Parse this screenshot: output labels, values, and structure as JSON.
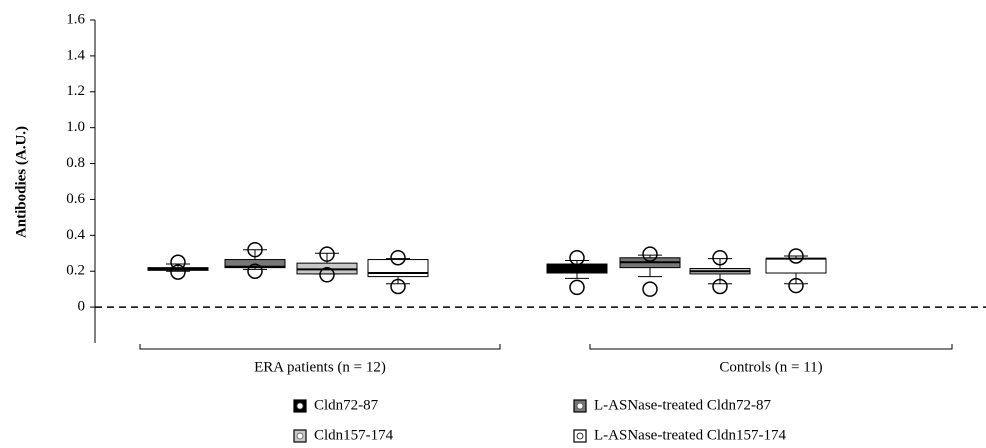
{
  "chart_data": {
    "type": "box",
    "ylabel": "Antibodies (A.U.)",
    "ylim": [
      -0.2,
      1.6
    ],
    "yticks": [
      0,
      0.2,
      0.4,
      0.6,
      0.8,
      {
        "value": 1,
        "label": "1.0"
      },
      1.2,
      1.4,
      1.6
    ],
    "reference_line": 0,
    "categories": [
      "ERA patients (n = 12)",
      "Controls (n = 11)"
    ],
    "series": [
      {
        "name": "Cldn72-87",
        "color": "#000000",
        "boxes": [
          {
            "min": 0.2,
            "q1": 0.205,
            "median": 0.21,
            "q3": 0.22,
            "max": 0.24,
            "outliers": [
              0.25,
              0.195
            ]
          },
          {
            "min": 0.16,
            "q1": 0.19,
            "median": 0.22,
            "q3": 0.24,
            "max": 0.26,
            "outliers": [
              0.275,
              0.11
            ]
          }
        ]
      },
      {
        "name": "L-ASNase-treated Cldn72-87",
        "color": "#777777",
        "boxes": [
          {
            "min": 0.21,
            "q1": 0.22,
            "median": 0.225,
            "q3": 0.265,
            "max": 0.32,
            "outliers": [
              0.32,
              0.2
            ]
          },
          {
            "min": 0.17,
            "q1": 0.22,
            "median": 0.25,
            "q3": 0.275,
            "max": 0.29,
            "outliers": [
              0.295,
              0.1
            ]
          }
        ]
      },
      {
        "name": "Cldn157-174",
        "color": "#c8c8c8",
        "boxes": [
          {
            "min": 0.185,
            "q1": 0.185,
            "median": 0.21,
            "q3": 0.245,
            "max": 0.3,
            "outliers": [
              0.295,
              0.18
            ]
          },
          {
            "min": 0.13,
            "q1": 0.185,
            "median": 0.2,
            "q3": 0.215,
            "max": 0.27,
            "outliers": [
              0.275,
              0.115
            ]
          }
        ]
      },
      {
        "name": "L-ASNase-treated Cldn157-174",
        "color": "#ffffff",
        "boxes": [
          {
            "min": 0.13,
            "q1": 0.17,
            "median": 0.19,
            "q3": 0.265,
            "max": 0.27,
            "outliers": [
              0.275,
              0.115
            ]
          },
          {
            "min": 0.13,
            "q1": 0.19,
            "median": 0.27,
            "q3": 0.27,
            "max": 0.285,
            "outliers": [
              0.285,
              0.12
            ]
          }
        ]
      }
    ]
  }
}
